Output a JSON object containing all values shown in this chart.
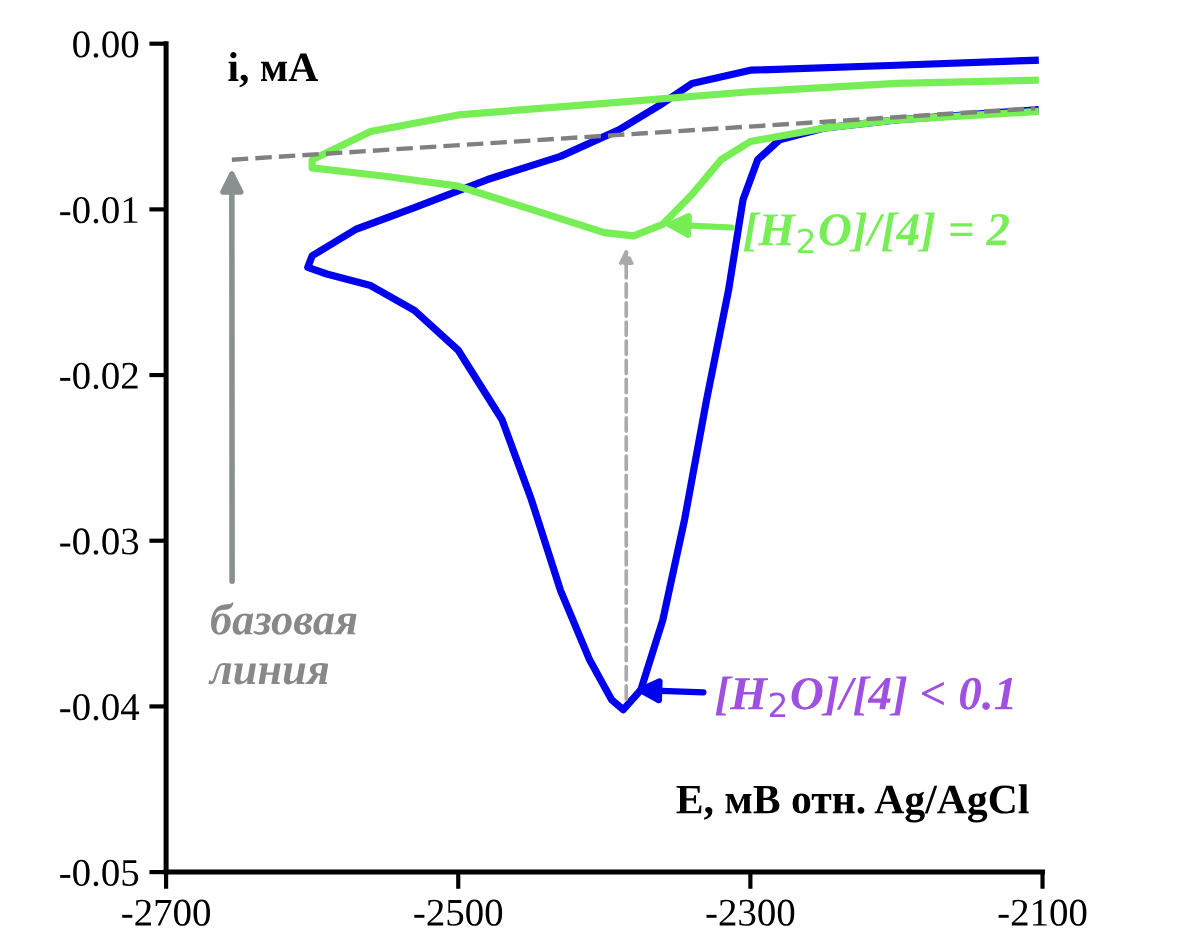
{
  "chart_data": {
    "type": "line",
    "xlabel": "E, мВ отн. Ag/AgCl",
    "ylabel": "i, мА",
    "xlim": [
      -2700,
      -2100
    ],
    "xticks": [
      -2700,
      -2500,
      -2300,
      -2100
    ],
    "ylim": [
      -0.05,
      0
    ],
    "yticks": [
      {
        "value": 0,
        "label": "0.00"
      },
      {
        "value": -0.01,
        "label": "-0.01"
      },
      {
        "value": -0.02,
        "label": "-0.02"
      },
      {
        "value": -0.03,
        "label": "-0.03"
      },
      {
        "value": -0.04,
        "label": "-0.04"
      },
      {
        "value": -0.05,
        "label": "-0.05"
      }
    ],
    "grid": false,
    "legend": false,
    "marker": "none",
    "line_style": "solid",
    "series": [
      {
        "color": "#0000ee",
        "x": [
          -2105,
          -2200,
          -2300,
          -2340,
          -2360,
          -2390,
          -2430,
          -2480,
          -2530,
          -2570,
          -2600,
          -2603,
          -2590,
          -2560,
          -2530,
          -2500,
          -2470,
          -2450,
          -2430,
          -2410,
          -2395,
          -2387,
          -2375,
          -2360,
          -2345,
          -2330,
          -2315,
          -2305,
          -2295,
          -2280,
          -2250,
          -2200,
          -2105
        ],
        "values": [
          -0.001,
          -0.0013,
          -0.0016,
          -0.0024,
          -0.0036,
          -0.0052,
          -0.0068,
          -0.0082,
          -0.0099,
          -0.0112,
          -0.0128,
          -0.0135,
          -0.0139,
          -0.0146,
          -0.0161,
          -0.0185,
          -0.0227,
          -0.0275,
          -0.033,
          -0.0372,
          -0.0396,
          -0.0402,
          -0.039,
          -0.0348,
          -0.0287,
          -0.0215,
          -0.0149,
          -0.0094,
          -0.007,
          -0.0058,
          -0.0051,
          -0.0046,
          -0.004
        ]
      },
      {
        "color": "#77ee55",
        "x": [
          -2105,
          -2200,
          -2300,
          -2400,
          -2500,
          -2560,
          -2600,
          -2600,
          -2550,
          -2500,
          -2450,
          -2400,
          -2380,
          -2360,
          -2340,
          -2320,
          -2300,
          -2250,
          -2200,
          -2105
        ],
        "values": [
          -0.0022,
          -0.0024,
          -0.0029,
          -0.0036,
          -0.0043,
          -0.0053,
          -0.007,
          -0.0075,
          -0.008,
          -0.0086,
          -0.01,
          -0.0114,
          -0.0116,
          -0.0109,
          -0.0091,
          -0.007,
          -0.0059,
          -0.0051,
          -0.0046,
          -0.0041
        ]
      },
      {
        "color": "#808080",
        "line_style": "dashed",
        "x": [
          -2655,
          -2105
        ],
        "values": [
          -0.007,
          -0.0039
        ]
      }
    ],
    "annotations": [
      {
        "text": "[H$_{2}$O]/[4] = 2",
        "x": -2360,
        "y": -0.0109
      },
      {
        "text": "[H$_{2}$O]/[4] < 0.1",
        "x": -2380,
        "y": -0.039
      },
      {
        "text": "базовая\nлиния",
        "x": -2655,
        "y": -0.0075
      }
    ]
  }
}
